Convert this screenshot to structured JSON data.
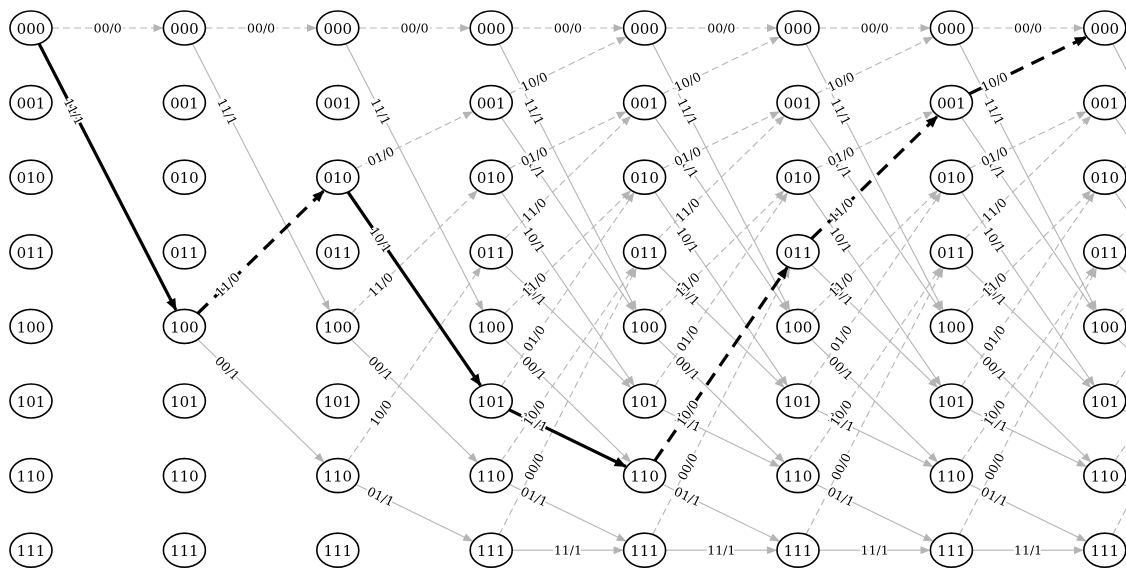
{
  "trellis": {
    "stages": 8,
    "states": [
      "000",
      "001",
      "010",
      "011",
      "100",
      "101",
      "110",
      "111"
    ],
    "transitions": [
      {
        "from": "000",
        "to": "000",
        "label": "00/0",
        "input": 0
      },
      {
        "from": "000",
        "to": "100",
        "label": "11/1",
        "input": 1
      },
      {
        "from": "001",
        "to": "000",
        "label": "10/0",
        "input": 0
      },
      {
        "from": "001",
        "to": "100",
        "label": "01/1",
        "input": 1
      },
      {
        "from": "010",
        "to": "001",
        "label": "01/0",
        "input": 0
      },
      {
        "from": "010",
        "to": "101",
        "label": "10/1",
        "input": 1
      },
      {
        "from": "011",
        "to": "001",
        "label": "11/0",
        "input": 0
      },
      {
        "from": "011",
        "to": "101",
        "label": "00/1",
        "input": 1
      },
      {
        "from": "100",
        "to": "010",
        "label": "11/0",
        "input": 0
      },
      {
        "from": "100",
        "to": "110",
        "label": "00/1",
        "input": 1
      },
      {
        "from": "101",
        "to": "010",
        "label": "01/0",
        "input": 0
      },
      {
        "from": "101",
        "to": "110",
        "label": "10/1",
        "input": 1
      },
      {
        "from": "110",
        "to": "011",
        "label": "10/0",
        "input": 0
      },
      {
        "from": "110",
        "to": "111",
        "label": "01/1",
        "input": 1
      },
      {
        "from": "111",
        "to": "011",
        "label": "00/0",
        "input": 0
      },
      {
        "from": "111",
        "to": "111",
        "label": "11/1",
        "input": 1
      }
    ],
    "highlighted_path": [
      "000",
      "100",
      "010",
      "101",
      "110",
      "011",
      "001",
      "000"
    ],
    "colors": {
      "normal_edge": "#b4b4b4",
      "highlight_edge": "#000000",
      "node_stroke": "#000000",
      "node_fill": "#ffffff"
    }
  }
}
